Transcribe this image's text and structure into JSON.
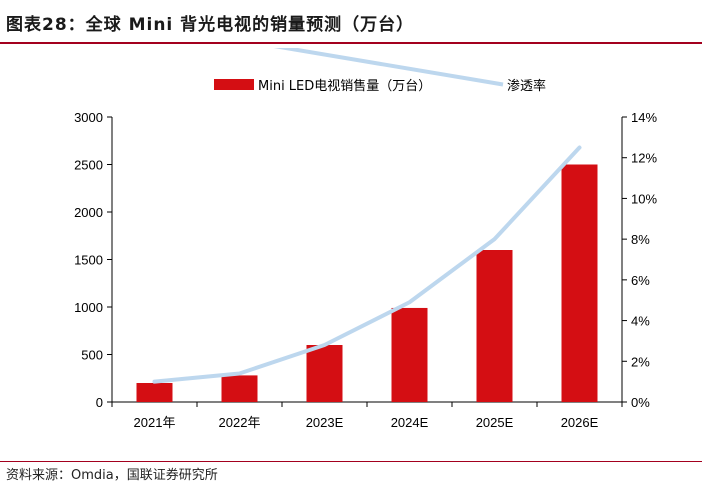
{
  "header": {
    "title": "图表28：全球 Mini 背光电视的销量预测（万台）"
  },
  "footer": {
    "source": "资料来源：Omdia，国联证券研究所"
  },
  "colors": {
    "bar": "#d40e13",
    "line": "#bdd7ee",
    "rule": "#a3001e"
  },
  "chart_data": {
    "type": "bar",
    "title": "",
    "categories": [
      "2021年",
      "2022年",
      "2023E",
      "2024E",
      "2025E",
      "2026E"
    ],
    "series": [
      {
        "name": "Mini LED电视销售量（万台）",
        "type": "bar",
        "axis": "left",
        "values": [
          200,
          280,
          600,
          990,
          1600,
          2500
        ]
      },
      {
        "name": "渗透率",
        "type": "line",
        "axis": "right",
        "values": [
          1.0,
          1.4,
          2.8,
          4.9,
          8.0,
          12.5
        ]
      }
    ],
    "y_left": {
      "ylim": [
        0,
        3000
      ],
      "ticks": [
        "0",
        "500",
        "1000",
        "1500",
        "2000",
        "2500",
        "3000"
      ]
    },
    "y_right": {
      "ylim": [
        0,
        14
      ],
      "ticks": [
        "0%",
        "2%",
        "4%",
        "6%",
        "8%",
        "10%",
        "12%",
        "14%"
      ]
    },
    "legend_position": "top-center",
    "grid": false
  }
}
